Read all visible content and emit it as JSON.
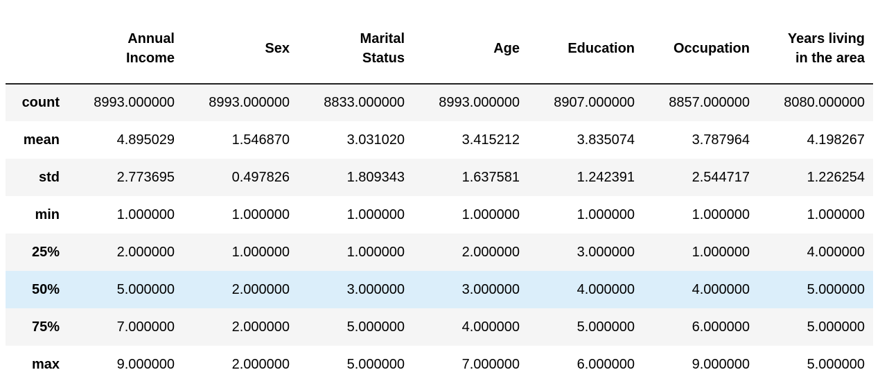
{
  "table": {
    "columns": [
      "Annual Income",
      "Sex",
      "Marital Status",
      "Age",
      "Education",
      "Occupation",
      "Years living in the area"
    ],
    "rows": [
      [
        "count",
        "8993.000000",
        "8993.000000",
        "8833.000000",
        "8993.000000",
        "8907.000000",
        "8857.000000",
        "8080.000000"
      ],
      [
        "mean",
        "4.895029",
        "1.546870",
        "3.031020",
        "3.415212",
        "3.835074",
        "3.787964",
        "4.198267"
      ],
      [
        "std",
        "2.773695",
        "0.497826",
        "1.809343",
        "1.637581",
        "1.242391",
        "2.544717",
        "1.226254"
      ],
      [
        "min",
        "1.000000",
        "1.000000",
        "1.000000",
        "1.000000",
        "1.000000",
        "1.000000",
        "1.000000"
      ],
      [
        "25%",
        "2.000000",
        "1.000000",
        "1.000000",
        "2.000000",
        "3.000000",
        "1.000000",
        "4.000000"
      ],
      [
        "50%",
        "5.000000",
        "2.000000",
        "3.000000",
        "3.000000",
        "4.000000",
        "4.000000",
        "5.000000"
      ],
      [
        "75%",
        "7.000000",
        "2.000000",
        "5.000000",
        "4.000000",
        "5.000000",
        "6.000000",
        "5.000000"
      ],
      [
        "max",
        "9.000000",
        "2.000000",
        "5.000000",
        "7.000000",
        "6.000000",
        "9.000000",
        "5.000000"
      ]
    ]
  }
}
